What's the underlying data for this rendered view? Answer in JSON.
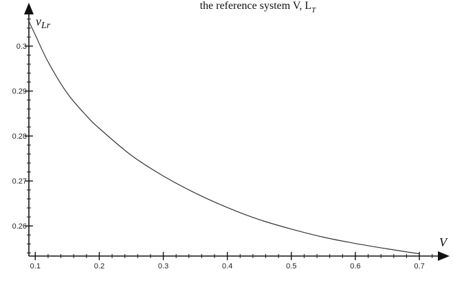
{
  "chart_data": {
    "type": "line",
    "title": "the reference system V, L",
    "title_subscript": "T",
    "xlabel": "V",
    "ylabel": "ν",
    "ylabel_subscript": "Lr",
    "xlim": [
      0.09,
      0.73
    ],
    "ylim": [
      0.2533,
      0.3075
    ],
    "x_ticks": [
      "0.1",
      "0.2",
      "0.3",
      "0.4",
      "0.5",
      "0.6",
      "0.7"
    ],
    "y_ticks": [
      "0.26",
      "0.27",
      "0.28",
      "0.29",
      "0.3"
    ],
    "grid": false,
    "series": [
      {
        "x": [
          0.09,
          0.1,
          0.12,
          0.15,
          0.18,
          0.2,
          0.25,
          0.3,
          0.35,
          0.4,
          0.45,
          0.5,
          0.55,
          0.6,
          0.65,
          0.7
        ],
        "y": [
          0.3055,
          0.3025,
          0.2965,
          0.2895,
          0.2845,
          0.2817,
          0.2757,
          0.2711,
          0.2673,
          0.2641,
          0.2614,
          0.2593,
          0.2575,
          0.2561,
          0.2549,
          0.2538
        ]
      }
    ]
  }
}
